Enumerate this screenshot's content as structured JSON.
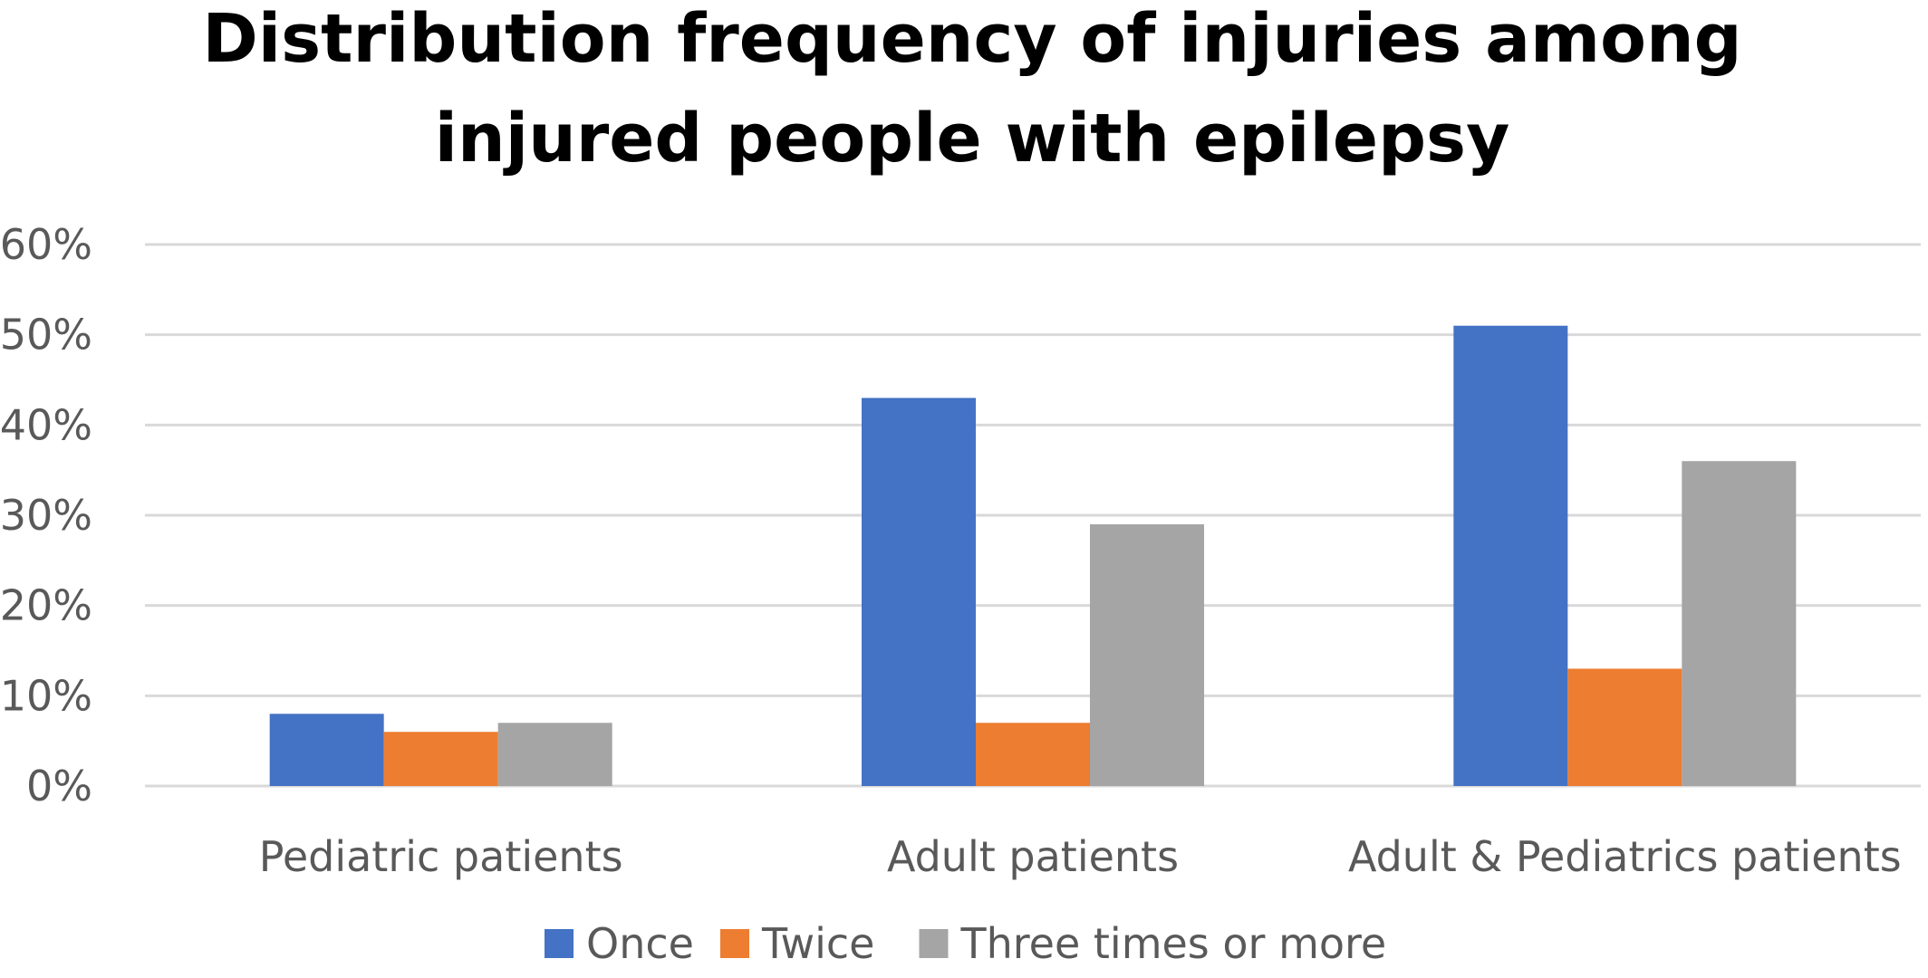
{
  "chart_data": {
    "type": "bar",
    "title_lines": [
      "Distribution frequency of injuries among",
      "injured people with epilepsy"
    ],
    "xlabel": "",
    "ylabel": "",
    "categories": [
      "Pediatric patients",
      "Adult patients",
      "Adult & Pediatrics patients"
    ],
    "series": [
      {
        "name": "Once",
        "color": "#4472c4",
        "values": [
          8,
          43,
          51
        ]
      },
      {
        "name": "Twice",
        "color": "#ed7d31",
        "values": [
          6,
          7,
          13
        ]
      },
      {
        "name": "Three times or more",
        "color": "#a5a5a5",
        "values": [
          7,
          29,
          36
        ]
      }
    ],
    "y_ticks": [
      0,
      10,
      20,
      30,
      40,
      50,
      60
    ],
    "y_tick_labels": [
      "0%",
      "10%",
      "20%",
      "30%",
      "40%",
      "50%",
      "60%"
    ],
    "ylim": [
      0,
      60
    ],
    "value_unit": "%",
    "grid": true,
    "legend_position": "bottom"
  }
}
